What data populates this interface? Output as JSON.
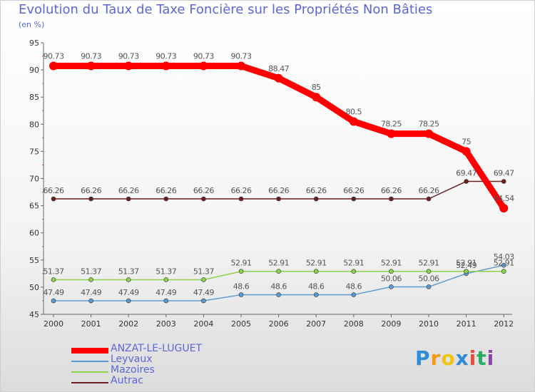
{
  "header": {
    "title": "Evolution du Taux de Taxe Foncière sur les Propriétés Non Bâties",
    "subtitle": "(en %)"
  },
  "chart_data": {
    "type": "line",
    "title": "Evolution du Taux de Taxe Foncière sur les Propriétés Non Bâties",
    "ylabel": "(en %)",
    "xlabel": "",
    "categories": [
      "2000",
      "2001",
      "2002",
      "2003",
      "2004",
      "2005",
      "2006",
      "2007",
      "2008",
      "2009",
      "2010",
      "2011",
      "2012"
    ],
    "ylim": [
      45,
      95
    ],
    "yticks": [
      45,
      50,
      55,
      60,
      65,
      70,
      75,
      80,
      85,
      90,
      95
    ],
    "grid": false,
    "legend_position": "bottom-left",
    "series": [
      {
        "name": "ANZAT-LE-LUGUET",
        "color": "#ff0000",
        "values": [
          90.73,
          90.73,
          90.73,
          90.73,
          90.73,
          90.73,
          88.47,
          85,
          80.5,
          78.25,
          78.25,
          75,
          64.54
        ],
        "labels": [
          "90.73",
          "90.73",
          "90.73",
          "90.73",
          "90.73",
          "90.73",
          "88.47",
          "85",
          "80.5",
          "78.25",
          "78.25",
          "75",
          "64.54"
        ]
      },
      {
        "name": "Leyvaux",
        "color": "#5a9bd4",
        "values": [
          47.49,
          47.49,
          47.49,
          47.49,
          47.49,
          48.6,
          48.6,
          48.6,
          48.6,
          50.06,
          50.06,
          52.49,
          54.03
        ],
        "labels": [
          "47.49",
          "47.49",
          "47.49",
          "47.49",
          "47.49",
          "48.6",
          "48.6",
          "48.6",
          "48.6",
          "50.06",
          "50.06",
          "52.49",
          "54.03"
        ]
      },
      {
        "name": "Mazoires",
        "color": "#8bd34a",
        "values": [
          51.37,
          51.37,
          51.37,
          51.37,
          51.37,
          52.91,
          52.91,
          52.91,
          52.91,
          52.91,
          52.91,
          52.91,
          52.91
        ],
        "labels": [
          "51.37",
          "51.37",
          "51.37",
          "51.37",
          "51.37",
          "52.91",
          "52.91",
          "52.91",
          "52.91",
          "52.91",
          "52.91",
          "52.91",
          "52.91"
        ]
      },
      {
        "name": "Autrac",
        "color": "#6b1f1f",
        "values": [
          66.26,
          66.26,
          66.26,
          66.26,
          66.26,
          66.26,
          66.26,
          66.26,
          66.26,
          66.26,
          66.26,
          69.47,
          69.47
        ],
        "labels": [
          "66.26",
          "66.26",
          "66.26",
          "66.26",
          "66.26",
          "66.26",
          "66.26",
          "66.26",
          "66.26",
          "66.26",
          "66.26",
          "69.47",
          "69.47"
        ]
      }
    ]
  },
  "legend": {
    "items": [
      {
        "label": "ANZAT-LE-LUGUET",
        "color": "#ff0000"
      },
      {
        "label": "Leyvaux",
        "color": "#5a9bd4"
      },
      {
        "label": "Mazoires",
        "color": "#8bd34a"
      },
      {
        "label": "Autrac",
        "color": "#6b1f1f"
      }
    ]
  },
  "logo": {
    "letters": [
      "P",
      "r",
      "o",
      "x",
      "i",
      "t",
      "i"
    ],
    "colors": [
      "#2e8bd6",
      "#f39c12",
      "#f1c40f",
      "#2e8bd6",
      "#e74c3c",
      "#27ae60",
      "#8e44ad"
    ]
  }
}
